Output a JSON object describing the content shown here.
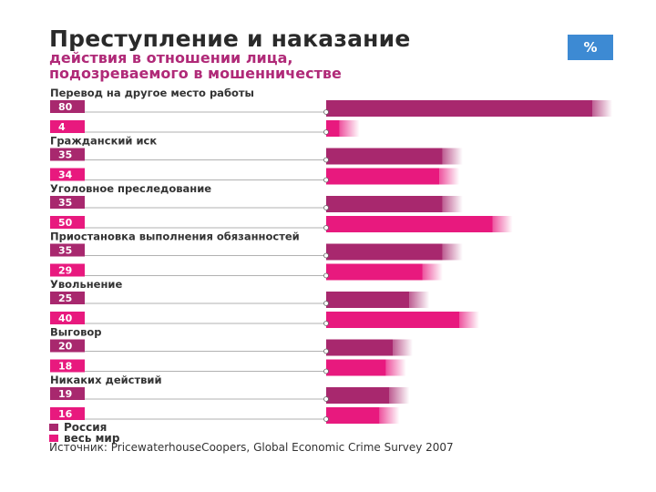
{
  "header": {
    "title": "Преступление и наказание",
    "subtitle_line1": "действия в отношении лица,",
    "subtitle_line2": "подозреваемого в мошенничестве",
    "unit_badge": "%"
  },
  "legend": {
    "russia": "Россия",
    "world": "весь мир"
  },
  "source": "Источник: PricewaterhouseCoopers, Global Economic Crime Survey 2007",
  "colors": {
    "russia": "#a8286e",
    "world": "#e8197e",
    "title": "#2a2a2a",
    "subtitle": "#b02a78",
    "badge": "#3d8ad3"
  },
  "chart_data": {
    "type": "bar",
    "orientation": "horizontal",
    "title": "Преступление и наказание",
    "xlabel": "%",
    "xlim": [
      0,
      80
    ],
    "categories": [
      "Перевод на другое место работы",
      "Гражданский иск",
      "Уголовное преследование",
      "Приостановка выполнения обязанностей",
      "Увольнение",
      "Выговор",
      "Никаких действий"
    ],
    "series": [
      {
        "name": "Россия",
        "values": [
          80,
          35,
          35,
          35,
          25,
          20,
          19
        ]
      },
      {
        "name": "весь мир",
        "values": [
          4,
          34,
          50,
          29,
          40,
          18,
          16
        ]
      }
    ]
  }
}
